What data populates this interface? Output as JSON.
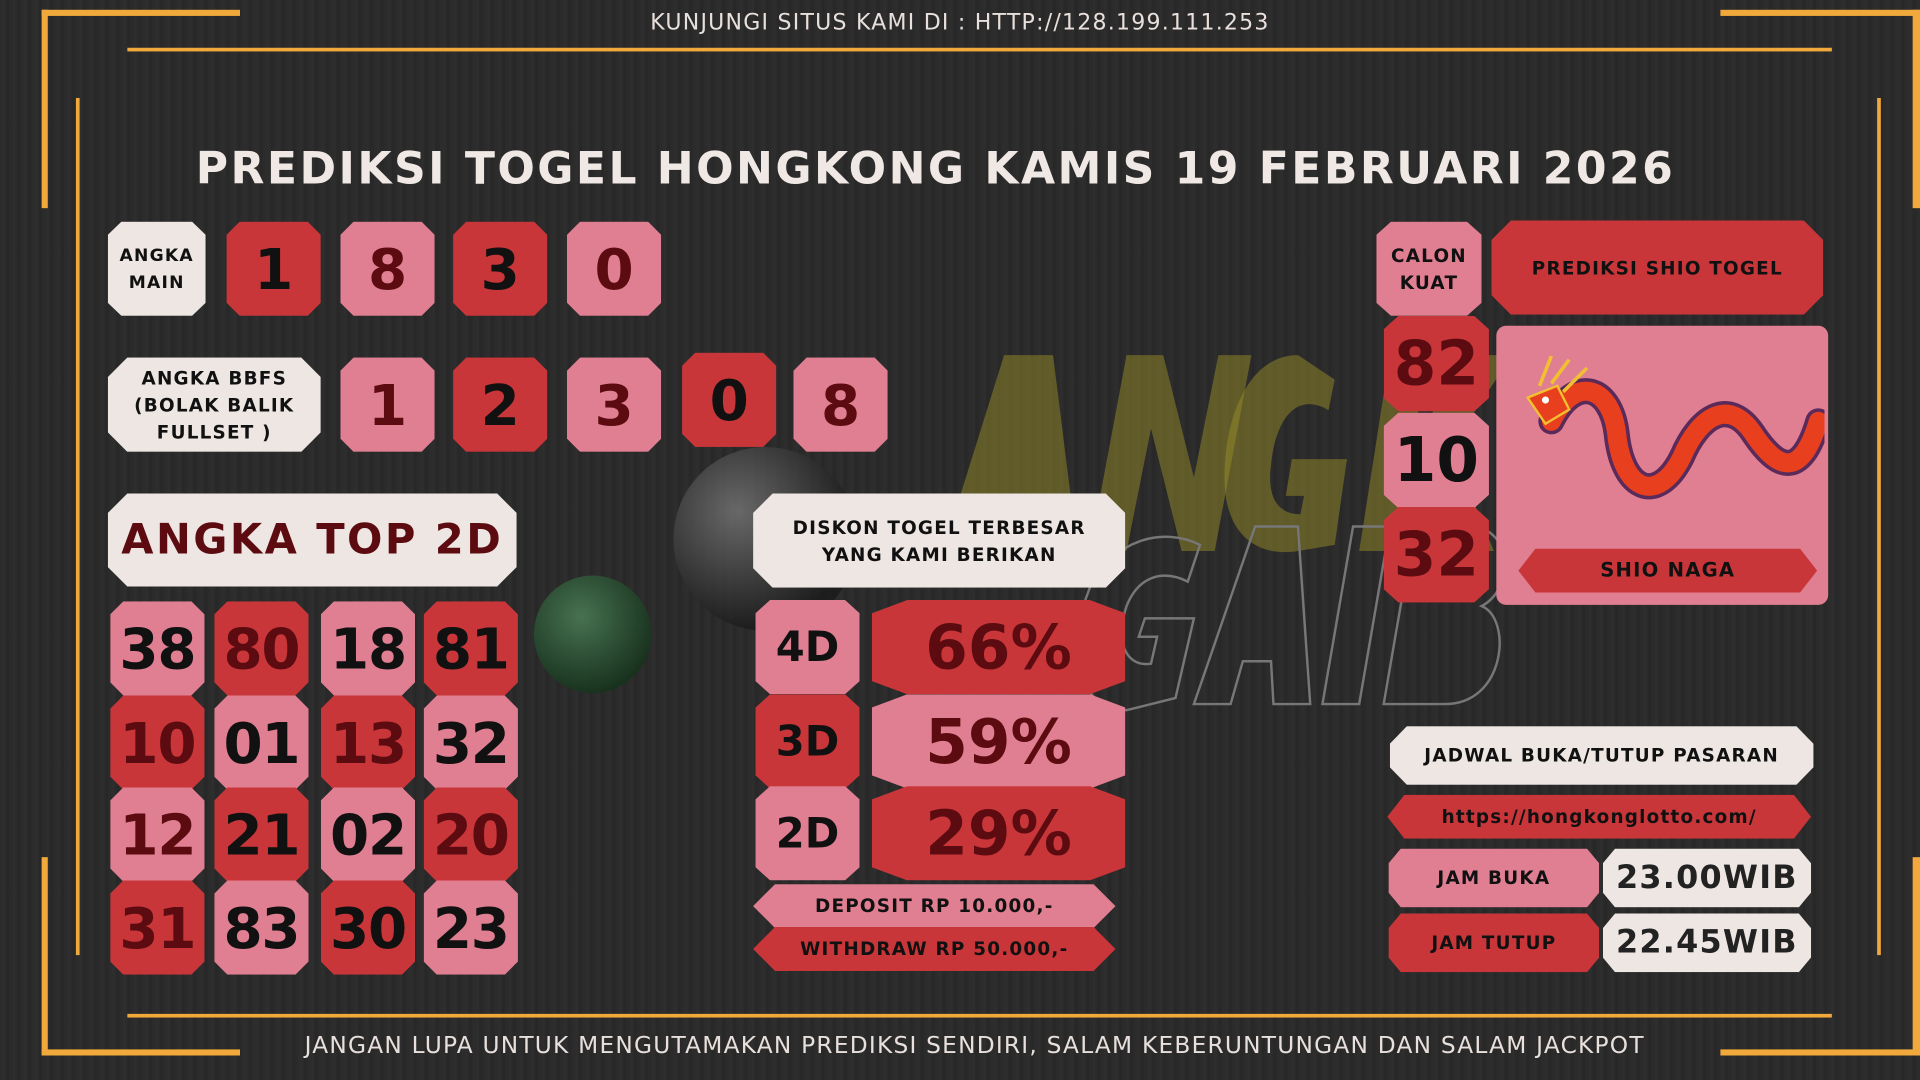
{
  "header": {
    "visit_text": "KUNJUNGI SITUS KAMI DI : HTTP://128.199.111.253"
  },
  "title": "PREDIKSI TOGEL HONGKONG KAMIS 19 FEBRUARI 2026",
  "watermark_logo": "ANGKA GAIB",
  "angka_main": {
    "label": "ANGKA MAIN",
    "numbers": [
      "1",
      "8",
      "3",
      "0"
    ]
  },
  "bbfs": {
    "label": "ANGKA BBFS (BOLAK BALIK FULLSET )",
    "numbers": [
      "1",
      "2",
      "3",
      "0",
      "8"
    ]
  },
  "top2d": {
    "label": "ANGKA TOP 2D",
    "numbers": [
      "38",
      "80",
      "18",
      "81",
      "10",
      "01",
      "13",
      "32",
      "12",
      "21",
      "02",
      "20",
      "31",
      "83",
      "30",
      "23"
    ]
  },
  "diskon": {
    "label": "DISKON TOGEL TERBESAR YANG KAMI BERIKAN",
    "rows": [
      {
        "type": "4D",
        "value": "66%"
      },
      {
        "type": "3D",
        "value": "59%"
      },
      {
        "type": "2D",
        "value": "29%"
      }
    ],
    "deposit": "DEPOSIT RP 10.000,-",
    "withdraw": "WITHDRAW RP 50.000,-"
  },
  "calon_kuat": {
    "label": "CALON KUAT",
    "numbers": [
      "82",
      "10",
      "32"
    ]
  },
  "shio": {
    "label": "PREDIKSI SHIO TOGEL",
    "name": "SHIO NAGA",
    "icon": "dragon-icon"
  },
  "jadwal": {
    "label": "JADWAL BUKA/TUTUP PASARAN",
    "url": "https://hongkonglotto.com/",
    "buka_label": "JAM BUKA",
    "buka_value": "23.00WIB",
    "tutup_label": "JAM TUTUP",
    "tutup_value": "22.45WIB"
  },
  "footer": {
    "text": "JANGAN LUPA UNTUK MENGUTAMAKAN PREDIKSI SENDIRI, SALAM KEBERUNTUNGAN DAN SALAM JACKPOT"
  },
  "colors": {
    "red": "#c8363a",
    "pink": "#e07f92",
    "cream": "#ede6e3",
    "frame": "#f2a93b",
    "background": "#2a2a2a"
  }
}
